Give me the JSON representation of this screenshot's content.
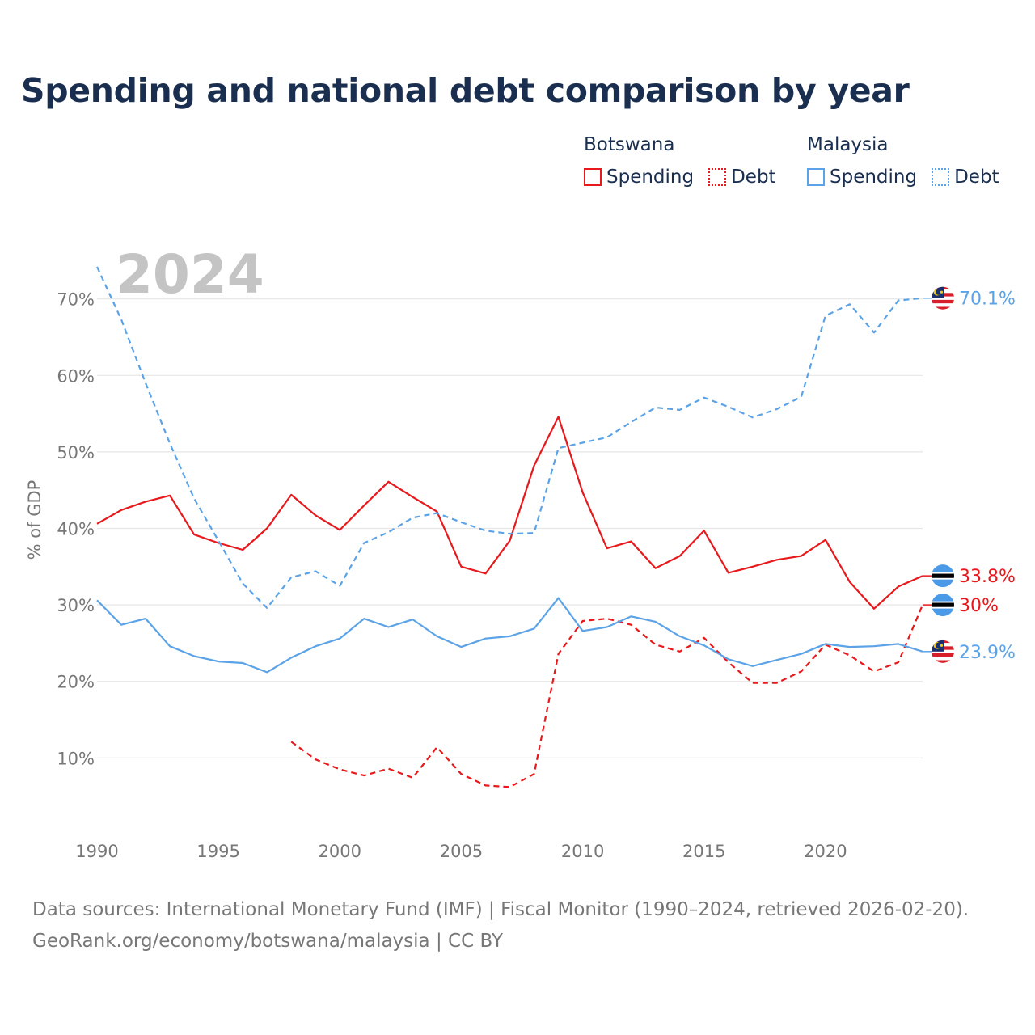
{
  "title": "Spending and national debt comparison by year",
  "legend": {
    "groups": [
      {
        "name": "Botswana",
        "items": [
          {
            "label": "Spending",
            "style": "solid",
            "color": "#e8191c"
          },
          {
            "label": "Debt",
            "style": "dotted",
            "color": "#e8191c"
          }
        ]
      },
      {
        "name": "Malaysia",
        "items": [
          {
            "label": "Spending",
            "style": "solid",
            "color": "#5ba3e6"
          },
          {
            "label": "Debt",
            "style": "dotted",
            "color": "#5ba3e6"
          }
        ]
      }
    ]
  },
  "colors": {
    "botswana": "#e8191c",
    "malaysia": "#5ba3e6",
    "grid": "#e6e6e6",
    "axis_text": "#777777",
    "year_watermark": "#c4c4c4"
  },
  "chart_data": {
    "type": "line",
    "year_watermark": "2024",
    "ylabel": "% of GDP",
    "xlabel": "",
    "xlim": [
      1990,
      2024
    ],
    "ylim": [
      2,
      78
    ],
    "x_ticks": [
      1990,
      1995,
      2000,
      2005,
      2010,
      2015,
      2020
    ],
    "y_ticks": [
      {
        "value": 10,
        "label": "10%"
      },
      {
        "value": 20,
        "label": "20%"
      },
      {
        "value": 30,
        "label": "30%"
      },
      {
        "value": 40,
        "label": "40%"
      },
      {
        "value": 50,
        "label": "50%"
      },
      {
        "value": 60,
        "label": "60%"
      },
      {
        "value": 70,
        "label": "70%"
      }
    ],
    "series": [
      {
        "name": "Botswana Spending",
        "country": "Botswana",
        "metric": "Spending",
        "color": "#e8191c",
        "dash": "solid",
        "x": [
          1990,
          1991,
          1992,
          1993,
          1994,
          1995,
          1996,
          1997,
          1998,
          1999,
          2000,
          2001,
          2002,
          2003,
          2004,
          2005,
          2006,
          2007,
          2008,
          2009,
          2010,
          2011,
          2012,
          2013,
          2014,
          2015,
          2016,
          2017,
          2018,
          2019,
          2020,
          2021,
          2022,
          2023,
          2024
        ],
        "values": [
          40.6,
          42.4,
          43.5,
          44.3,
          39.2,
          38.1,
          37.2,
          40.0,
          44.4,
          41.7,
          39.8,
          43.0,
          46.1,
          44.1,
          42.2,
          35.0,
          34.1,
          38.4,
          48.2,
          54.6,
          44.7,
          37.4,
          38.3,
          34.8,
          36.4,
          39.7,
          34.2,
          35.0,
          35.9,
          36.4,
          38.5,
          33.0,
          29.5,
          32.4,
          33.8
        ],
        "end_label": "33.8%"
      },
      {
        "name": "Botswana Debt",
        "country": "Botswana",
        "metric": "Debt",
        "color": "#e8191c",
        "dash": "dashed",
        "x": [
          1998,
          1999,
          2000,
          2001,
          2002,
          2003,
          2004,
          2005,
          2006,
          2007,
          2008,
          2009,
          2010,
          2011,
          2012,
          2013,
          2014,
          2015,
          2016,
          2017,
          2018,
          2019,
          2020,
          2021,
          2022,
          2023,
          2024
        ],
        "values": [
          12.1,
          9.8,
          8.5,
          7.7,
          8.6,
          7.4,
          11.4,
          7.9,
          6.4,
          6.2,
          7.9,
          23.6,
          27.9,
          28.2,
          27.4,
          24.8,
          23.9,
          25.7,
          22.5,
          19.8,
          19.8,
          21.3,
          24.8,
          23.4,
          21.3,
          22.5,
          30.0
        ],
        "end_label": "30%"
      },
      {
        "name": "Malaysia Spending",
        "country": "Malaysia",
        "metric": "Spending",
        "color": "#5ba3e6",
        "dash": "solid",
        "x": [
          1990,
          1991,
          1992,
          1993,
          1994,
          1995,
          1996,
          1997,
          1998,
          1999,
          2000,
          2001,
          2002,
          2003,
          2004,
          2005,
          2006,
          2007,
          2008,
          2009,
          2010,
          2011,
          2012,
          2013,
          2014,
          2015,
          2016,
          2017,
          2018,
          2019,
          2020,
          2021,
          2022,
          2023,
          2024
        ],
        "values": [
          30.6,
          27.4,
          28.2,
          24.6,
          23.3,
          22.6,
          22.4,
          21.2,
          23.1,
          24.6,
          25.6,
          28.2,
          27.1,
          28.1,
          25.9,
          24.5,
          25.6,
          25.9,
          26.9,
          30.9,
          26.6,
          27.1,
          28.5,
          27.8,
          25.9,
          24.7,
          22.9,
          22.0,
          22.8,
          23.6,
          24.9,
          24.5,
          24.6,
          24.9,
          23.9
        ],
        "end_label": "23.9%"
      },
      {
        "name": "Malaysia Debt",
        "country": "Malaysia",
        "metric": "Debt",
        "color": "#5ba3e6",
        "dash": "dashed",
        "x": [
          1990,
          1991,
          1992,
          1993,
          1994,
          1995,
          1996,
          1997,
          1998,
          1999,
          2000,
          2001,
          2002,
          2003,
          2004,
          2005,
          2006,
          2007,
          2008,
          2009,
          2010,
          2011,
          2012,
          2013,
          2014,
          2015,
          2016,
          2017,
          2018,
          2019,
          2020,
          2021,
          2022,
          2023,
          2024
        ],
        "values": [
          74.2,
          67.3,
          59.0,
          51.1,
          43.9,
          38.4,
          32.8,
          29.6,
          33.6,
          34.4,
          32.5,
          38.1,
          39.5,
          41.4,
          42.0,
          40.8,
          39.7,
          39.3,
          39.4,
          50.5,
          51.2,
          51.9,
          53.9,
          55.8,
          55.5,
          57.1,
          55.9,
          54.5,
          55.6,
          57.2,
          67.8,
          69.3,
          65.6,
          69.8,
          70.1
        ],
        "end_label": "70.1%"
      }
    ]
  },
  "source_lines": [
    "Data sources: International Monetary Fund (IMF) | Fiscal Monitor (1990–2024, retrieved 2026-02-20).",
    "GeoRank.org/economy/botswana/malaysia | CC BY"
  ]
}
